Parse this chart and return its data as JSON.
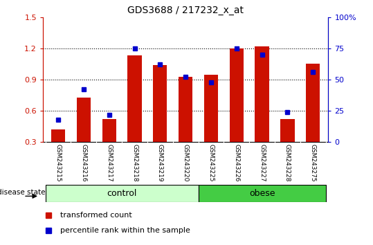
{
  "title": "GDS3688 / 217232_x_at",
  "samples": [
    "GSM243215",
    "GSM243216",
    "GSM243217",
    "GSM243218",
    "GSM243219",
    "GSM243220",
    "GSM243225",
    "GSM243226",
    "GSM243227",
    "GSM243228",
    "GSM243275"
  ],
  "transformed_count": [
    0.42,
    0.73,
    0.52,
    1.13,
    1.04,
    0.93,
    0.95,
    1.2,
    1.22,
    0.52,
    1.05
  ],
  "percentile_rank_pct": [
    18,
    42,
    22,
    75,
    62,
    52,
    48,
    75,
    70,
    24,
    56
  ],
  "bar_color": "#cc1100",
  "dot_color": "#0000cc",
  "ylim_left": [
    0.3,
    1.5
  ],
  "ylim_right": [
    0,
    100
  ],
  "yticks_left": [
    0.3,
    0.6,
    0.9,
    1.2,
    1.5
  ],
  "yticks_right": [
    0,
    25,
    50,
    75,
    100
  ],
  "ytick_labels_right": [
    "0",
    "25",
    "50",
    "75",
    "100%"
  ],
  "control_label": "control",
  "obese_label": "obese",
  "group_label": "disease state",
  "legend_red": "transformed count",
  "legend_blue": "percentile rank within the sample",
  "control_color": "#ccffcc",
  "obese_color": "#44cc44",
  "bar_width": 0.55,
  "tick_area_color": "#cccccc",
  "n_control": 6,
  "n_obese": 5
}
